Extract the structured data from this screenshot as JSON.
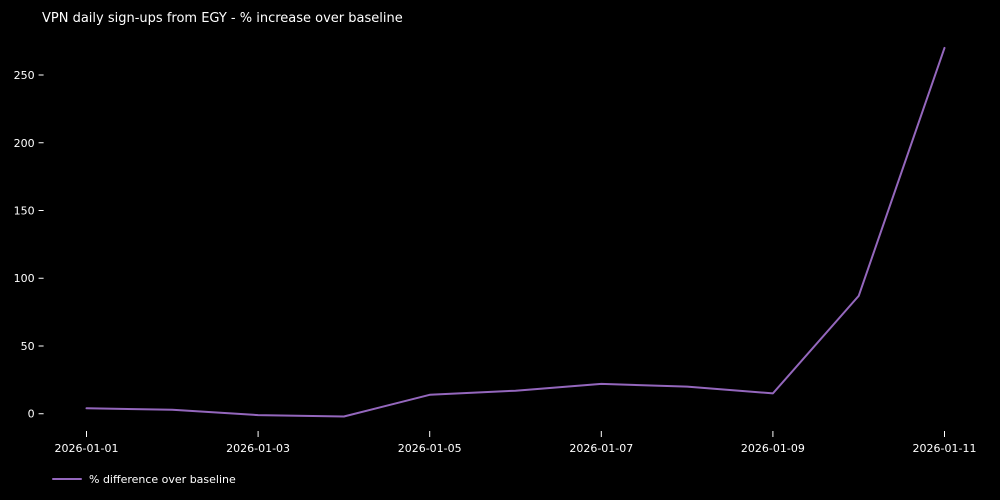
{
  "colors": {
    "background": "#000000",
    "text": "#ffffff",
    "line": "#9467bd",
    "tick": "#ffffff"
  },
  "chart_data": {
    "type": "line",
    "title": "VPN daily sign-ups from EGY - % increase over baseline",
    "x": [
      "2026-01-01",
      "2026-01-02",
      "2026-01-03",
      "2026-01-04",
      "2026-01-05",
      "2026-01-06",
      "2026-01-07",
      "2026-01-08",
      "2026-01-09",
      "2026-01-10",
      "2026-01-11"
    ],
    "series": [
      {
        "name": "% difference over baseline",
        "color": "#9467bd",
        "values": [
          4,
          3,
          -1,
          -2,
          14,
          17,
          22,
          20,
          15,
          87,
          270
        ]
      }
    ],
    "xlabel": "",
    "ylabel": "",
    "xtick_indices": [
      0,
      2,
      4,
      6,
      8,
      10
    ],
    "yticks": [
      0,
      50,
      100,
      150,
      200,
      250
    ],
    "xlim": [
      -0.5,
      10.5
    ],
    "ylim": [
      -12,
      281
    ],
    "grid": false,
    "legend_position": "lower-left-outside",
    "line_width": 2,
    "background": "dark"
  }
}
